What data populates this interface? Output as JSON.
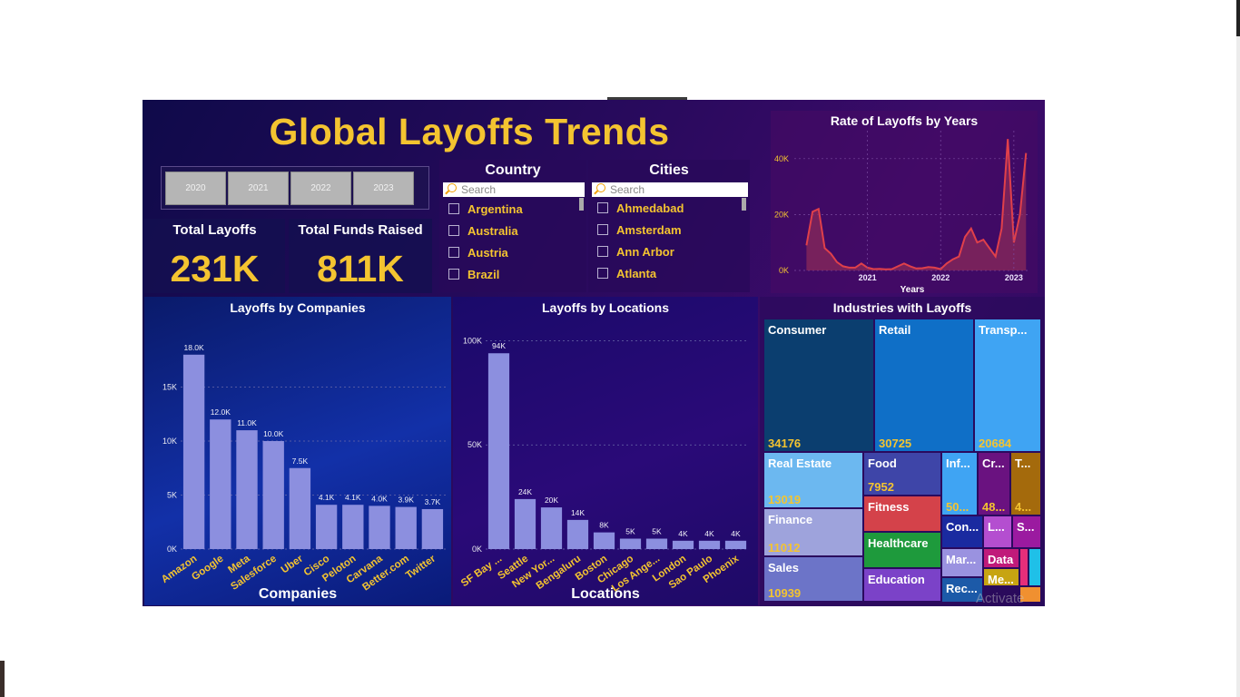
{
  "title": "Global Layoffs Trends",
  "years": [
    "2020",
    "2021",
    "2022",
    "2023"
  ],
  "kpis": {
    "total_layoffs_label": "Total Layoffs",
    "total_layoffs_value": "231K",
    "funds_label": "Total Funds Raised",
    "funds_value": "811K"
  },
  "country_filter": {
    "title": "Country",
    "search_placeholder": "Search",
    "options": [
      "Argentina",
      "Australia",
      "Austria",
      "Brazil"
    ]
  },
  "city_filter": {
    "title": "Cities",
    "search_placeholder": "Search",
    "options": [
      "Ahmedabad",
      "Amsterdam",
      "Ann Arbor",
      "Atlanta"
    ]
  },
  "colors": {
    "accent": "#f4c430",
    "bar": "#8c8fdf",
    "line": "#e0404a"
  },
  "watermark": "Activate",
  "chart_data": [
    {
      "type": "area",
      "title": "Rate of Layoffs by Years",
      "xlabel": "Years",
      "ylabel": "",
      "x_ticks": [
        "2021",
        "2022",
        "2023"
      ],
      "y_ticks": [
        "0K",
        "20K",
        "40K"
      ],
      "ylim": [
        0,
        50000
      ],
      "x": [
        "2020-03",
        "2020-04",
        "2020-05",
        "2020-06",
        "2020-07",
        "2020-08",
        "2020-09",
        "2020-10",
        "2020-11",
        "2020-12",
        "2021-01",
        "2021-02",
        "2021-03",
        "2021-04",
        "2021-05",
        "2021-06",
        "2021-07",
        "2021-08",
        "2021-09",
        "2021-10",
        "2021-11",
        "2021-12",
        "2022-01",
        "2022-02",
        "2022-03",
        "2022-04",
        "2022-05",
        "2022-06",
        "2022-07",
        "2022-08",
        "2022-09",
        "2022-10",
        "2022-11",
        "2022-12",
        "2023-01",
        "2023-02",
        "2023-03"
      ],
      "values": [
        9000,
        21000,
        22000,
        8000,
        6000,
        3000,
        1500,
        1000,
        1000,
        2500,
        1000,
        500,
        600,
        400,
        500,
        1500,
        2500,
        1500,
        700,
        800,
        1200,
        1000,
        500,
        2500,
        4000,
        5000,
        12000,
        15000,
        10000,
        11000,
        8000,
        5000,
        15000,
        47000,
        10000,
        20000,
        42000
      ]
    },
    {
      "type": "bar",
      "title": "Layoffs by Companies",
      "xlabel": "Companies",
      "ylabel": "",
      "categories": [
        "Amazon",
        "Google",
        "Meta",
        "Salesforce",
        "Uber",
        "Cisco",
        "Peloton",
        "Carvana",
        "Better.com",
        "Twitter"
      ],
      "values": [
        18000,
        12000,
        11000,
        10000,
        7500,
        4100,
        4100,
        4000,
        3900,
        3700
      ],
      "labels": [
        "18.0K",
        "12.0K",
        "11.0K",
        "10.0K",
        "7.5K",
        "4.1K",
        "4.1K",
        "4.0K",
        "3.9K",
        "3.7K"
      ],
      "y_ticks": [
        "0K",
        "5K",
        "10K",
        "15K"
      ],
      "ylim": [
        0,
        20000
      ]
    },
    {
      "type": "bar",
      "title": "Layoffs by Locations",
      "xlabel": "Locations",
      "ylabel": "",
      "categories": [
        "SF Bay ...",
        "Seattle",
        "New Yor...",
        "Bengaluru",
        "Boston",
        "Chicago",
        "Los Ange...",
        "London",
        "Sao Paulo",
        "Phoenix"
      ],
      "values": [
        94000,
        24000,
        20000,
        14000,
        8000,
        5000,
        5000,
        4000,
        4000,
        4000
      ],
      "labels": [
        "94K",
        "24K",
        "20K",
        "14K",
        "8K",
        "5K",
        "5K",
        "4K",
        "4K",
        "4K"
      ],
      "y_ticks": [
        "0K",
        "50K",
        "100K"
      ],
      "ylim": [
        0,
        105000
      ]
    },
    {
      "type": "heatmap",
      "title": "Industries with Layoffs",
      "cells": [
        {
          "name": "Consumer",
          "value": "34176",
          "color": "#0b3e6f"
        },
        {
          "name": "Retail",
          "value": "30725",
          "color": "#0f6fc7"
        },
        {
          "name": "Transp...",
          "value": "20684",
          "color": "#3fa4f3"
        },
        {
          "name": "Real Estate",
          "value": "13019",
          "color": "#6cb8f0"
        },
        {
          "name": "Food",
          "value": "7952",
          "color": "#3e45a8"
        },
        {
          "name": "Fitness",
          "value": "",
          "color": "#d4424a"
        },
        {
          "name": "Healthcare",
          "value": "",
          "color": "#1e9a3c"
        },
        {
          "name": "Education",
          "value": "",
          "color": "#7b42c8"
        },
        {
          "name": "Finance",
          "value": "11012",
          "color": "#9ea3dc"
        },
        {
          "name": "Sales",
          "value": "10939",
          "color": "#6c74c8"
        },
        {
          "name": "Inf...",
          "value": "50...",
          "color": "#3fa4f3"
        },
        {
          "name": "Cr...",
          "value": "48...",
          "color": "#6a1280"
        },
        {
          "name": "T...",
          "value": "4...",
          "color": "#a46a0c"
        },
        {
          "name": "Con...",
          "value": "",
          "color": "#1a2aa0"
        },
        {
          "name": "L...",
          "value": "",
          "color": "#b44ed0"
        },
        {
          "name": "S...",
          "value": "",
          "color": "#9b1aa0"
        },
        {
          "name": "Mar...",
          "value": "",
          "color": "#9a92e0"
        },
        {
          "name": "Data",
          "value": "",
          "color": "#c01a7a"
        },
        {
          "name": "Me...",
          "value": "",
          "color": "#c7a412"
        },
        {
          "name": "Rec...",
          "value": "",
          "color": "#1c5aa8"
        },
        {
          "name": "",
          "value": "",
          "color": "#e52e7a"
        },
        {
          "name": "",
          "value": "",
          "color": "#1fc0e8"
        },
        {
          "name": "",
          "value": "",
          "color": "#f09030"
        }
      ]
    }
  ]
}
